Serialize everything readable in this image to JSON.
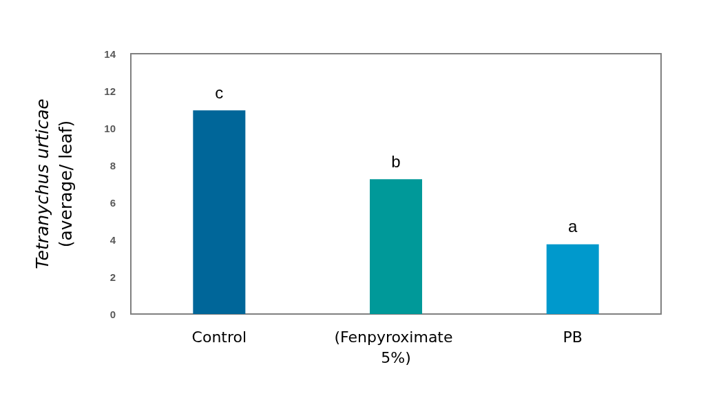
{
  "chart_data": {
    "type": "bar",
    "ylabel": "Tetranychus urticae (average/ leaf)",
    "categories": [
      "Control",
      "(Fenpyroximate 5%)",
      "PB"
    ],
    "values": [
      10.95,
      7.25,
      3.75
    ],
    "colors": [
      "#006699",
      "#009999",
      "#0099cc"
    ],
    "ylim": [
      0,
      14
    ],
    "yticks": [
      0,
      2,
      4,
      6,
      8,
      10,
      12,
      14
    ],
    "grid": false,
    "annotations": [
      "c",
      "b",
      "a"
    ]
  }
}
